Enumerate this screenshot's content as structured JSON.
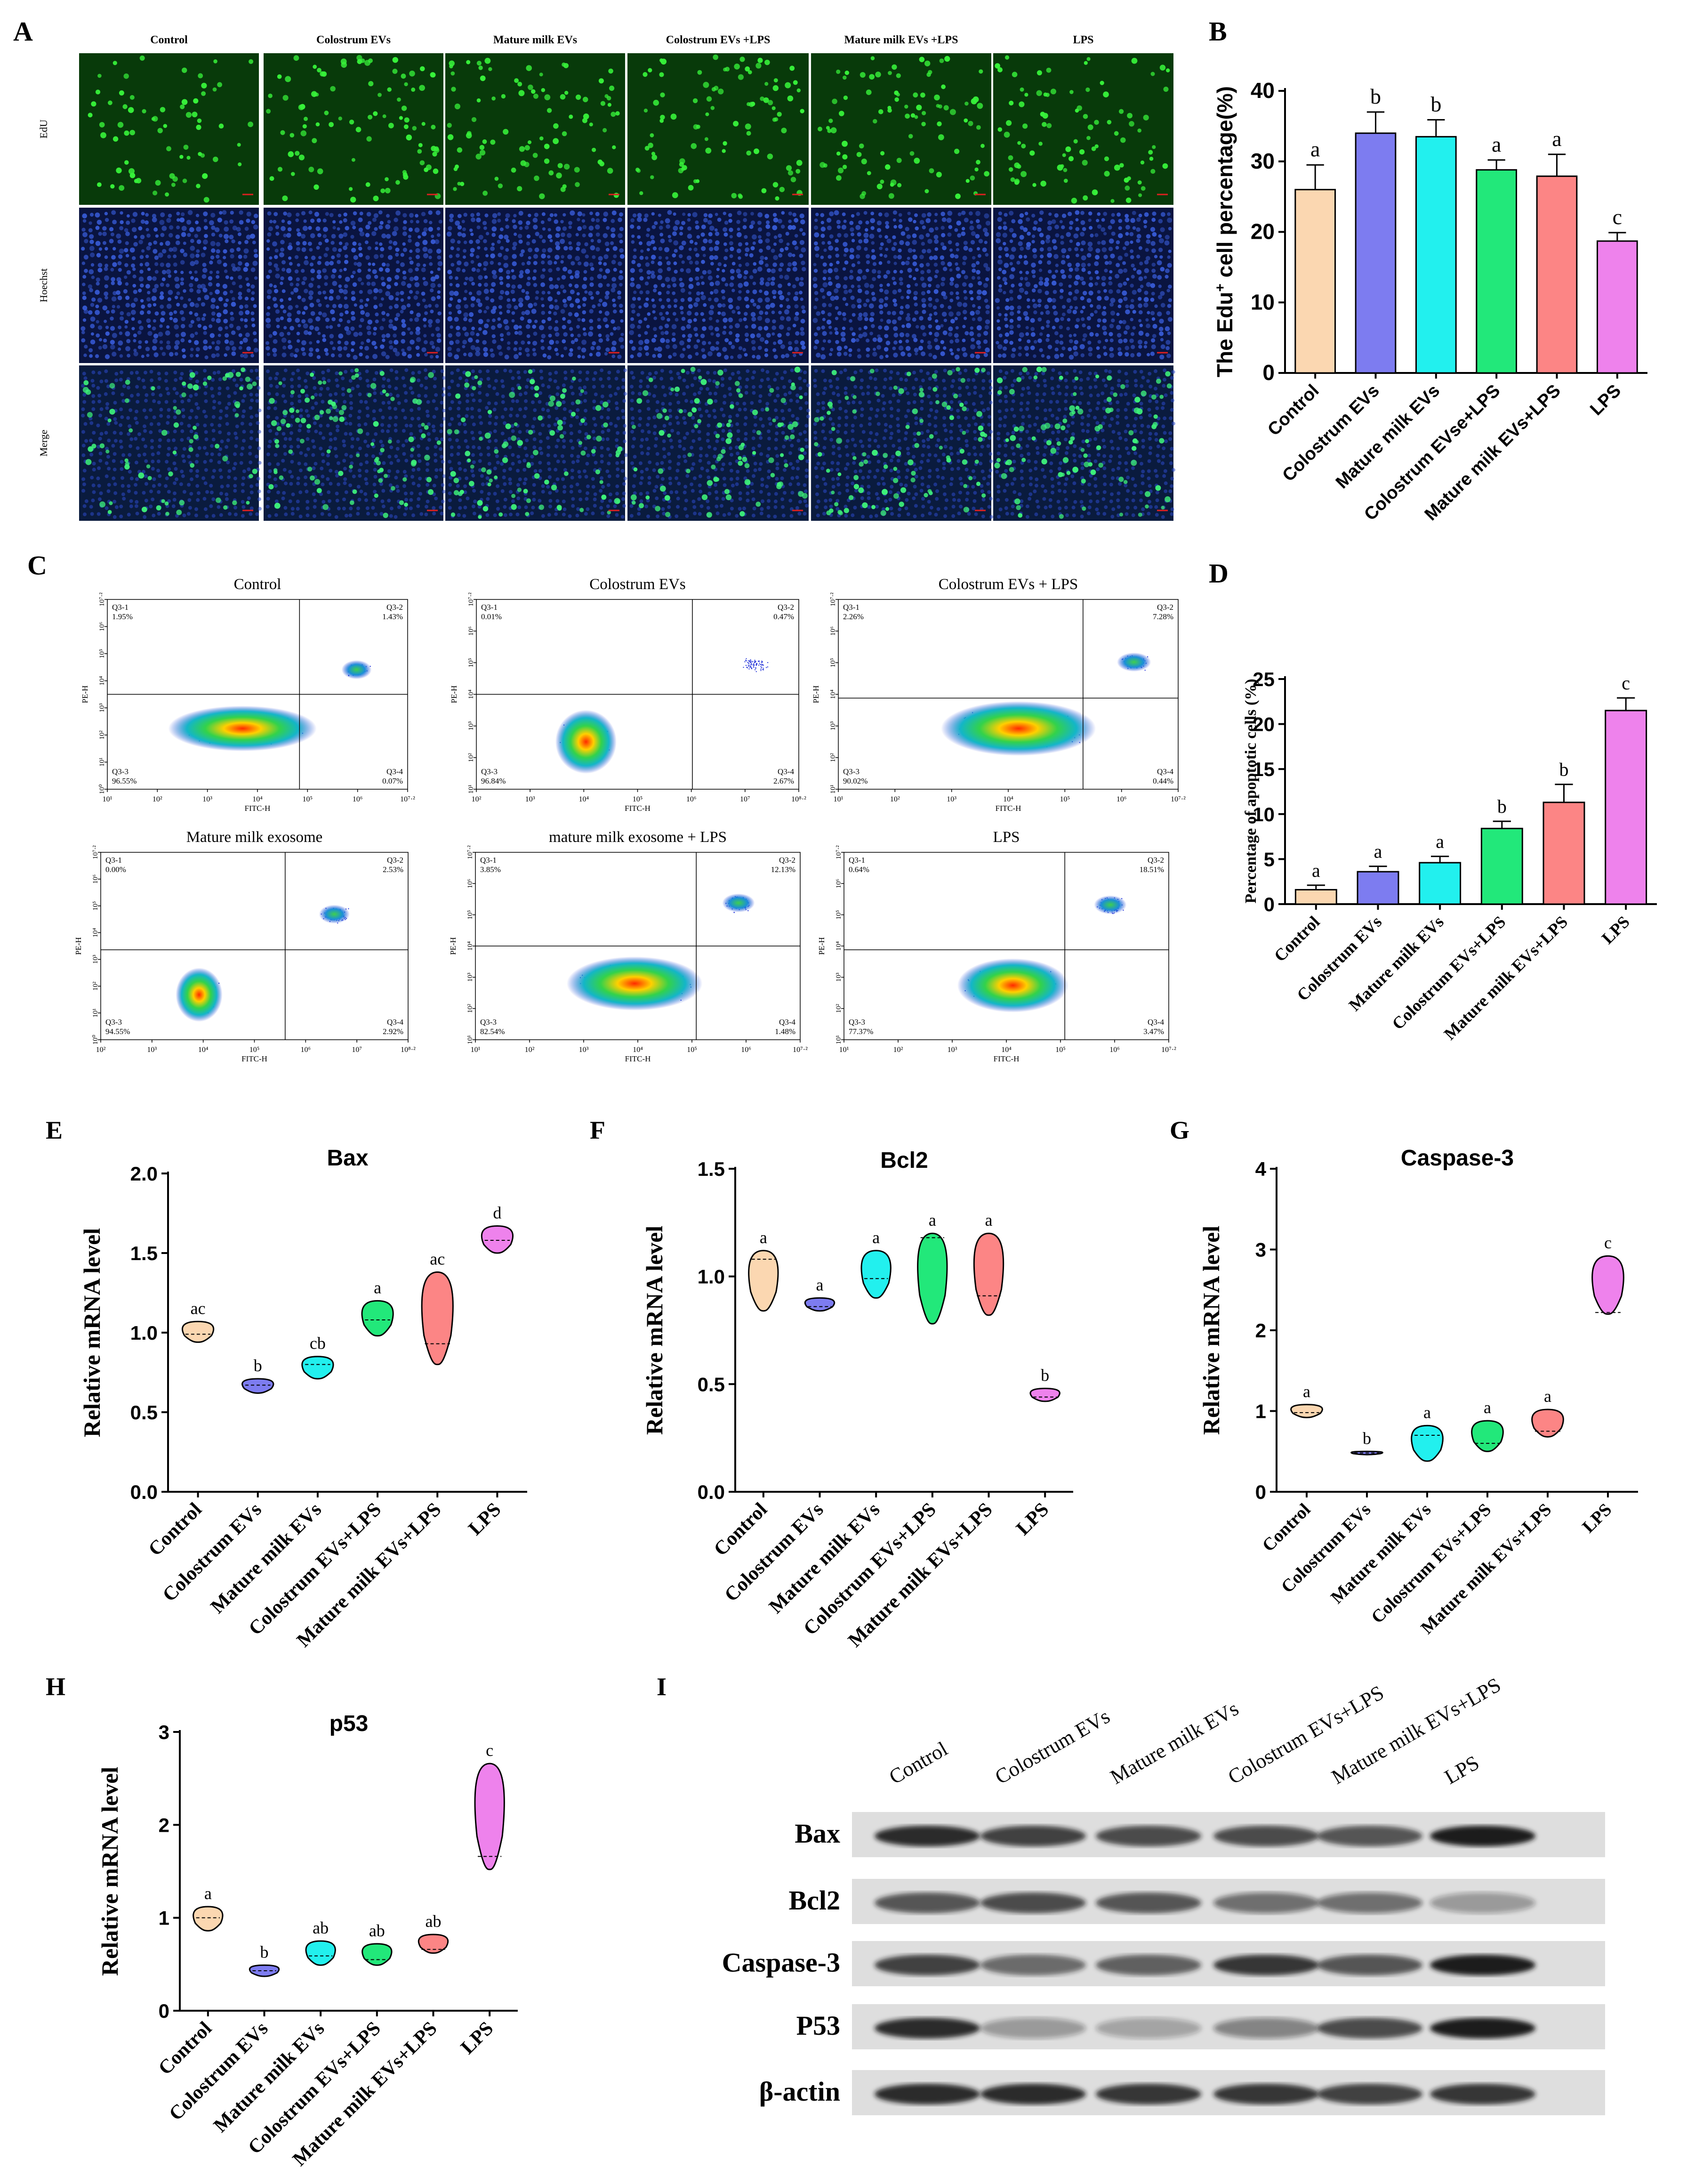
{
  "panel_letters": [
    "A",
    "B",
    "C",
    "D",
    "E",
    "F",
    "G",
    "H",
    "I"
  ],
  "microscopy": {
    "columns": [
      "Control",
      "Colostrum  EVs",
      "Mature milk  EVs",
      "Colostrum  EVs +LPS",
      "Mature milk  EVs +LPS",
      "LPS"
    ],
    "rows": [
      "EdU",
      "Hoechst",
      "Merge"
    ]
  },
  "flow": {
    "axis_x": "FITC-H",
    "axis_y": "PE-H",
    "plots": [
      {
        "title": "Control",
        "q1": "Q3-1",
        "q1v": "1.95%",
        "q2": "Q3-2",
        "q2v": "1.43%",
        "q3": "Q3-3",
        "q3v": "96.55%",
        "q4": "Q3-4",
        "q4v": "0.07%",
        "xt": [
          "10¹",
          "10²",
          "10³",
          "10⁴",
          "10⁵",
          "10⁶",
          "10⁷·²"
        ],
        "yt": [
          "10⁰",
          "10¹",
          "10²",
          "10³",
          "10⁴",
          "10⁵",
          "10⁶",
          "10⁷·²"
        ]
      },
      {
        "title": "Colostrum EVs",
        "q1": "Q3-1",
        "q1v": "0.01%",
        "q2": "Q3-2",
        "q2v": "0.47%",
        "q3": "Q3-3",
        "q3v": "96.84%",
        "q4": "Q3-4",
        "q4v": "2.67%",
        "xt": [
          "10²",
          "10³",
          "10⁴",
          "10⁵",
          "10⁶",
          "10⁷",
          "10⁸·²"
        ],
        "yt": [
          "10¹",
          "10²",
          "10³",
          "10⁴",
          "10⁵",
          "10⁶",
          "10⁷·²"
        ]
      },
      {
        "title": "Colostrum EVs + LPS",
        "q1": "Q3-1",
        "q1v": "2.26%",
        "q2": "Q3-2",
        "q2v": "7.28%",
        "q3": "Q3-3",
        "q3v": "90.02%",
        "q4": "Q3-4",
        "q4v": "0.44%",
        "xt": [
          "10¹",
          "10²",
          "10³",
          "10⁴",
          "10⁵",
          "10⁶",
          "10⁷·²"
        ],
        "yt": [
          "10¹",
          "10²",
          "10³",
          "10⁴",
          "10⁵",
          "10⁶",
          "10⁷·²"
        ]
      },
      {
        "title": "Mature milk exosome",
        "q1": "Q3-1",
        "q1v": "0.00%",
        "q2": "Q3-2",
        "q2v": "2.53%",
        "q3": "Q3-3",
        "q3v": "94.55%",
        "q4": "Q3-4",
        "q4v": "2.92%",
        "xt": [
          "10²",
          "10³",
          "10⁴",
          "10⁵",
          "10⁶",
          "10⁷",
          "10⁸·²"
        ],
        "yt": [
          "10⁰",
          "10¹",
          "10²",
          "10³",
          "10⁴",
          "10⁵",
          "10⁶",
          "10⁷·²"
        ]
      },
      {
        "title": "mature milk exosome + LPS",
        "q1": "Q3-1",
        "q1v": "3.85%",
        "q2": "Q3-2",
        "q2v": "12.13%",
        "q3": "Q3-3",
        "q3v": "82.54%",
        "q4": "Q3-4",
        "q4v": "1.48%",
        "xt": [
          "10¹",
          "10²",
          "10³",
          "10⁴",
          "10⁵",
          "10⁶",
          "10⁷·²"
        ],
        "yt": [
          "10¹",
          "10²",
          "10³",
          "10⁴",
          "10⁵",
          "10⁶",
          "10⁷·²"
        ]
      },
      {
        "title": "LPS",
        "q1": "Q3-1",
        "q1v": "0.64%",
        "q2": "Q3-2",
        "q2v": "18.51%",
        "q3": "Q3-3",
        "q3v": "77.37%",
        "q4": "Q3-4",
        "q4v": "3.47%",
        "xt": [
          "10¹",
          "10²",
          "10³",
          "10⁴",
          "10⁵",
          "10⁶",
          "10⁷·²"
        ],
        "yt": [
          "10¹",
          "10²",
          "10³",
          "10⁴",
          "10⁵",
          "10⁶",
          "10⁷·²"
        ]
      }
    ]
  },
  "western_blot": {
    "lanes": [
      "Control",
      "Colostrum EVs",
      "Mature milk EVs",
      "Colostrum EVs+LPS",
      "Mature milk EVs+LPS",
      "LPS"
    ],
    "bands": [
      "Bax",
      "Bcl2",
      "Caspase-3",
      "P53",
      "β-actin"
    ]
  },
  "colors": [
    "#fbd7b1",
    "#7d7cf0",
    "#22f0ee",
    "#22e87a",
    "#fc8585",
    "#ee82ec"
  ],
  "chart_data": [
    {
      "id": "B",
      "type": "bar",
      "categories": [
        "Control",
        "Colostrum EVs",
        "Mature milk EVs",
        "Colostrum EVse+LPS",
        "Mature milk EVs+LPS",
        "LPS"
      ],
      "values": [
        26,
        34,
        33.5,
        28.8,
        27.9,
        18.7
      ],
      "errors": [
        3.5,
        3,
        2.4,
        1.4,
        3.1,
        1.2
      ],
      "letters": [
        "a",
        "b",
        "b",
        "a",
        "a",
        "c"
      ],
      "ylabel": "The Edu",
      "ylabel_sup": "+",
      "ylabel_tail": " cell percentage(%)",
      "ylim": [
        0,
        40
      ],
      "ticks": [
        "0",
        "10",
        "20",
        "30",
        "40"
      ]
    },
    {
      "id": "D",
      "type": "bar",
      "categories": [
        "Control",
        "Colostrum EVs",
        "Mature milk EVs",
        "Colostrum EVs+LPS",
        "Mature milk EVs+LPS",
        "LPS"
      ],
      "values": [
        1.6,
        3.6,
        4.6,
        8.4,
        11.3,
        21.5
      ],
      "errors": [
        0.5,
        0.6,
        0.7,
        0.8,
        2,
        1.4
      ],
      "letters": [
        "a",
        "a",
        "a",
        "b",
        "b",
        "c"
      ],
      "ylabel": "Percentage of apoptotic cells (%)",
      "ylim": [
        0,
        25
      ],
      "ticks": [
        "0",
        "5",
        "10",
        "15",
        "20",
        "25"
      ]
    },
    {
      "id": "E",
      "type": "violin",
      "title": "Bax",
      "categories": [
        "Control",
        "Colostrum EVs",
        "Mature milk EVs",
        "Colostrum EVs+LPS",
        "Mature milk EVs+LPS",
        "LPS"
      ],
      "min": [
        0.94,
        0.62,
        0.71,
        0.98,
        0.8,
        1.5
      ],
      "max": [
        1.07,
        0.71,
        0.85,
        1.2,
        1.38,
        1.67
      ],
      "median": [
        0.99,
        0.67,
        0.8,
        1.08,
        0.93,
        1.58
      ],
      "letters": [
        "ac",
        "b",
        "cb",
        "a",
        "ac",
        "d"
      ],
      "ylabel": "Relative mRNA level",
      "ylim": [
        0,
        2
      ],
      "ticks": [
        "0.0",
        "0.5",
        "1.0",
        "1.5",
        "2.0"
      ]
    },
    {
      "id": "F",
      "type": "violin",
      "title": "Bcl2",
      "categories": [
        "Control",
        "Colostrum EVs",
        "Mature milk EVs",
        "Colostrum EVs+LPS",
        "Mature milk EVs+LPS",
        "LPS"
      ],
      "min": [
        0.84,
        0.84,
        0.9,
        0.78,
        0.82,
        0.42
      ],
      "max": [
        1.12,
        0.9,
        1.12,
        1.2,
        1.2,
        0.48
      ],
      "median": [
        1.08,
        0.86,
        0.99,
        1.18,
        0.91,
        0.44
      ],
      "letters": [
        "a",
        "a",
        "a",
        "a",
        "a",
        "b"
      ],
      "ylabel": "Relative mRNA level",
      "ylim": [
        0,
        1.5
      ],
      "ticks": [
        "0.0",
        "0.5",
        "1.0",
        "1.5"
      ]
    },
    {
      "id": "G",
      "type": "violin",
      "title": "Caspase-3",
      "categories": [
        "Control",
        "Colostrum EVs",
        "Mature milk EVs",
        "Colostrum EVs+LPS",
        "Mature milk EVs+LPS",
        "LPS"
      ],
      "min": [
        0.92,
        0.46,
        0.38,
        0.5,
        0.68,
        2.2
      ],
      "max": [
        1.08,
        0.5,
        0.82,
        0.88,
        1.02,
        2.92
      ],
      "median": [
        0.98,
        0.48,
        0.7,
        0.6,
        0.75,
        2.22
      ],
      "letters": [
        "a",
        "b",
        "a",
        "a",
        "a",
        "c"
      ],
      "ylabel": "Relative mRNA level",
      "ylim": [
        0,
        4
      ],
      "ticks": [
        "0",
        "1",
        "2",
        "3",
        "4"
      ]
    },
    {
      "id": "H",
      "type": "violin",
      "title": "p53",
      "categories": [
        "Control",
        "Colostrum EVs",
        "Mature milk EVs",
        "Colostrum EVs+LPS",
        "Mature milk EVs+LPS",
        "LPS"
      ],
      "min": [
        0.86,
        0.37,
        0.49,
        0.49,
        0.62,
        1.52
      ],
      "max": [
        1.12,
        0.49,
        0.75,
        0.72,
        0.82,
        2.66
      ],
      "median": [
        1,
        0.43,
        0.59,
        0.55,
        0.66,
        1.66
      ],
      "letters": [
        "a",
        "b",
        "ab",
        "ab",
        "ab",
        "c"
      ],
      "ylabel": "Relative mRNA level",
      "ylim": [
        0,
        3
      ],
      "ticks": [
        "0",
        "1",
        "2",
        "3"
      ]
    }
  ]
}
